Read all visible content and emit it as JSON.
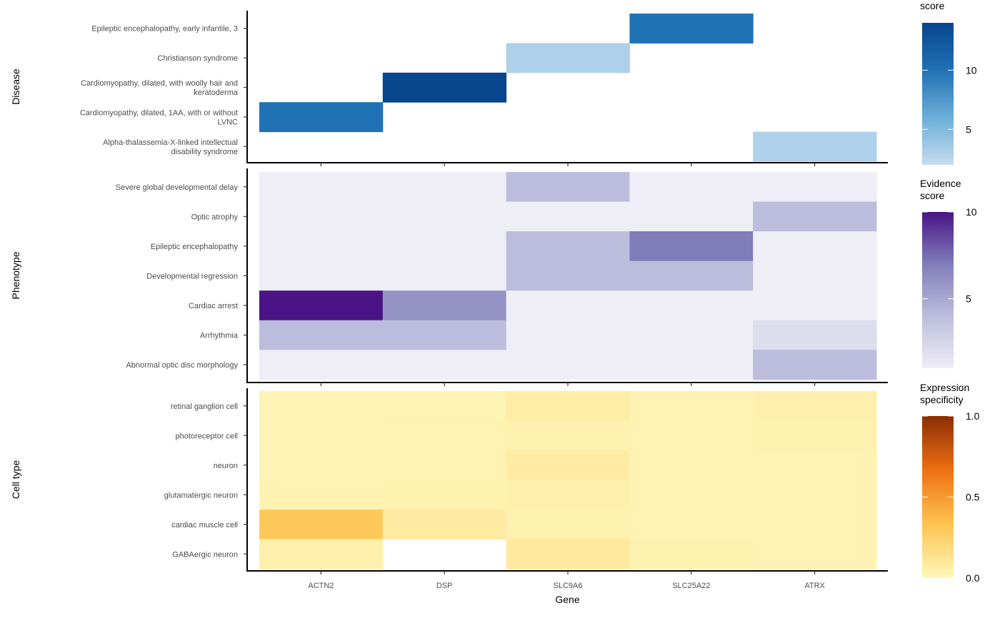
{
  "chart_data": {
    "type": "heatmap",
    "xlabel": "Gene",
    "genes": [
      "ACTN2",
      "DSP",
      "SLC9A6",
      "SLC25A22",
      "ATRX"
    ],
    "panels": [
      {
        "ylabel": "Disease",
        "rows": [
          "Epileptic encephalopathy, early infantile, 3",
          "Christianson syndrome",
          "Cardiomyopathy, dilated, with woolly hair and keratoderma",
          "Cardiomyopathy, dilated, 1AA, with or without LVNC",
          "Alpha-thalassemia-X-linked intellectual disability syndrome"
        ],
        "values": [
          [
            null,
            null,
            null,
            10,
            null
          ],
          [
            null,
            null,
            3,
            null,
            null
          ],
          [
            null,
            14,
            null,
            null,
            null
          ],
          [
            10,
            null,
            null,
            null,
            null
          ],
          [
            null,
            null,
            null,
            null,
            3
          ]
        ],
        "legend": {
          "title": [
            "score"
          ],
          "range": [
            2,
            14
          ],
          "ticks": [
            5,
            10
          ],
          "colors": [
            "#c6dbef",
            "#6baed6",
            "#2171b5",
            "#08468c"
          ]
        }
      },
      {
        "ylabel": "Phenotype",
        "rows": [
          "Severe global developmental delay",
          "Optic atrophy",
          "Epileptic encephalopathy",
          "Developmental regression",
          "Cardiac arrest",
          "Arrhythmia",
          "Abnormal optic disc morphology"
        ],
        "values": [
          [
            1,
            1,
            4,
            1,
            1
          ],
          [
            1,
            1,
            1,
            1,
            4
          ],
          [
            1,
            1,
            4,
            7,
            1
          ],
          [
            1,
            1,
            4,
            4,
            1
          ],
          [
            10,
            6,
            1,
            1,
            1
          ],
          [
            4,
            4,
            1,
            1,
            2
          ],
          [
            1,
            1,
            1,
            1,
            4
          ]
        ],
        "legend": {
          "title": [
            "Evidence",
            "score"
          ],
          "range": [
            1,
            10
          ],
          "ticks": [
            5,
            10
          ],
          "colors": [
            "#efedf5",
            "#bcbddc",
            "#807dba",
            "#4a1486"
          ]
        }
      },
      {
        "ylabel": "Cell type",
        "rows": [
          "retinal ganglion cell",
          "photoreceptor cell",
          "neuron",
          "glutamatergic neuron",
          "cardiac muscle cell",
          "GABAergic neuron"
        ],
        "values": [
          [
            0.02,
            0.02,
            0.07,
            0.03,
            0.05
          ],
          [
            0.02,
            0.03,
            0.04,
            0.03,
            0.04
          ],
          [
            0.02,
            0.03,
            0.08,
            0.03,
            0.03
          ],
          [
            0.03,
            0.04,
            0.05,
            0.03,
            0.03
          ],
          [
            0.3,
            0.08,
            0.04,
            0.03,
            0.03
          ],
          [
            0.05,
            null,
            0.09,
            0.04,
            0.03
          ]
        ],
        "legend": {
          "title": [
            "Expression",
            "specificity"
          ],
          "range": [
            0,
            1
          ],
          "ticks": [
            0.0,
            0.5,
            1.0
          ],
          "colors": [
            "#fff7bc",
            "#fec44f",
            "#ec7014",
            "#8c2d04"
          ]
        }
      }
    ]
  }
}
